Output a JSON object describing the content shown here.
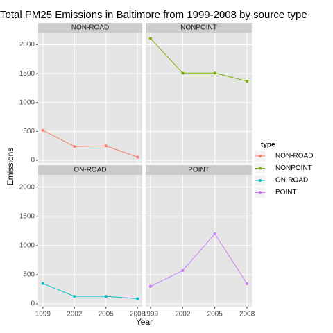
{
  "chart_data": {
    "type": "line",
    "title": "Total PM25 Emissions in Baltimore from 1999-2008 by source type",
    "x_label": "Year",
    "y_label": "Emissions",
    "legend_title": "type",
    "x": [
      1999,
      2002,
      2005,
      2008
    ],
    "xlim": [
      1998.55,
      2008.45
    ],
    "xticks": [
      1999,
      2002,
      2005,
      2008
    ],
    "ylim": [
      -47,
      2210
    ],
    "yticks": [
      0,
      500,
      1000,
      1500,
      2000
    ],
    "grid": true,
    "facets": true,
    "legend_position": "right",
    "series": [
      {
        "name": "NON-ROAD",
        "color": "#F8766D",
        "values": [
          520,
          240,
          250,
          55
        ]
      },
      {
        "name": "NONPOINT",
        "color": "#7CAE00",
        "values": [
          2110,
          1510,
          1510,
          1370
        ]
      },
      {
        "name": "ON-ROAD",
        "color": "#00BFC4",
        "values": [
          350,
          130,
          130,
          90
        ]
      },
      {
        "name": "POINT",
        "color": "#C77CFF",
        "values": [
          300,
          570,
          1200,
          345
        ]
      }
    ]
  }
}
